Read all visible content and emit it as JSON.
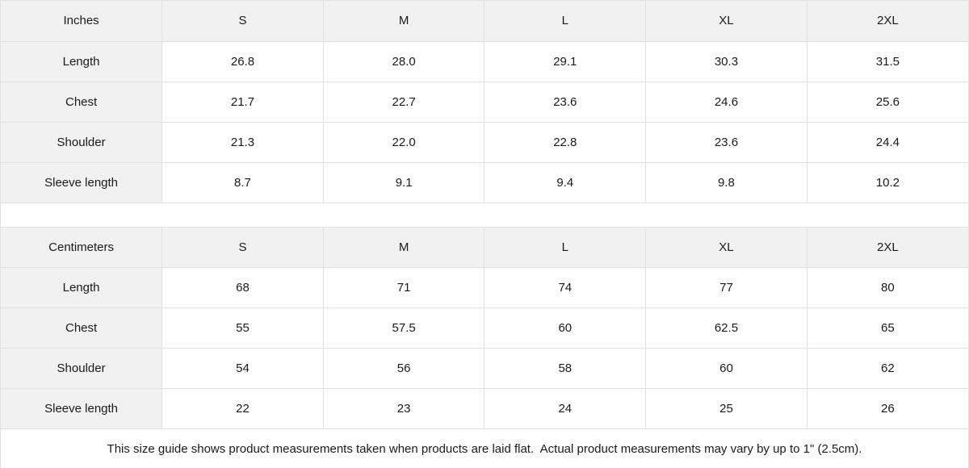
{
  "colors": {
    "header_bg": "#f1f1f1",
    "label_bg": "#f1f1f1",
    "cell_bg": "#ffffff",
    "border": "#e0e0e0",
    "text": "#1a1a1a"
  },
  "tables": [
    {
      "unit_label": "Inches",
      "sizes": [
        "S",
        "M",
        "L",
        "XL",
        "2XL"
      ],
      "rows": [
        {
          "label": "Length",
          "values": [
            "26.8",
            "28.0",
            "29.1",
            "30.3",
            "31.5"
          ]
        },
        {
          "label": "Chest",
          "values": [
            "21.7",
            "22.7",
            "23.6",
            "24.6",
            "25.6"
          ]
        },
        {
          "label": "Shoulder",
          "values": [
            "21.3",
            "22.0",
            "22.8",
            "23.6",
            "24.4"
          ]
        },
        {
          "label": "Sleeve length",
          "values": [
            "8.7",
            "9.1",
            "9.4",
            "9.8",
            "10.2"
          ]
        }
      ]
    },
    {
      "unit_label": "Centimeters",
      "sizes": [
        "S",
        "M",
        "L",
        "XL",
        "2XL"
      ],
      "rows": [
        {
          "label": "Length",
          "values": [
            "68",
            "71",
            "74",
            "77",
            "80"
          ]
        },
        {
          "label": "Chest",
          "values": [
            "55",
            "57.5",
            "60",
            "62.5",
            "65"
          ]
        },
        {
          "label": "Shoulder",
          "values": [
            "54",
            "56",
            "58",
            "60",
            "62"
          ]
        },
        {
          "label": "Sleeve length",
          "values": [
            "22",
            "23",
            "24",
            "25",
            "26"
          ]
        }
      ]
    }
  ],
  "footer": {
    "note": "This size guide shows product measurements taken when products are laid flat.  Actual product measurements may vary by up to 1\" (2.5cm)."
  },
  "chart_data": [
    {
      "type": "table",
      "title": "Inches",
      "columns": [
        "Inches",
        "S",
        "M",
        "L",
        "XL",
        "2XL"
      ],
      "rows": [
        [
          "Length",
          26.8,
          28.0,
          29.1,
          30.3,
          31.5
        ],
        [
          "Chest",
          21.7,
          22.7,
          23.6,
          24.6,
          25.6
        ],
        [
          "Shoulder",
          21.3,
          22.0,
          22.8,
          23.6,
          24.4
        ],
        [
          "Sleeve length",
          8.7,
          9.1,
          9.4,
          9.8,
          10.2
        ]
      ]
    },
    {
      "type": "table",
      "title": "Centimeters",
      "columns": [
        "Centimeters",
        "S",
        "M",
        "L",
        "XL",
        "2XL"
      ],
      "rows": [
        [
          "Length",
          68,
          71,
          74,
          77,
          80
        ],
        [
          "Chest",
          55,
          57.5,
          60,
          62.5,
          65
        ],
        [
          "Shoulder",
          54,
          56,
          58,
          60,
          62
        ],
        [
          "Sleeve length",
          22,
          23,
          24,
          25,
          26
        ]
      ]
    }
  ]
}
